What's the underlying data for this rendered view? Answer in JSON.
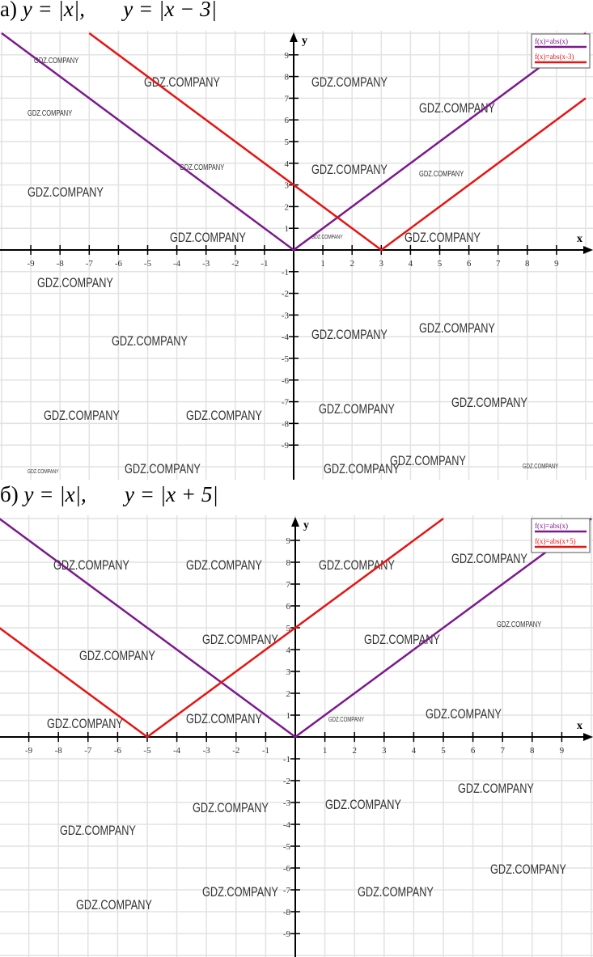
{
  "charts_titles": [
    {
      "label": "а)",
      "f1": "y = |x|,",
      "f2": "y = |x − 3|"
    },
    {
      "label": "б)",
      "f1": "y = |x|,",
      "f2": "y = |x + 5|"
    }
  ],
  "watermark": "GDZ.COMPANY",
  "chart_data": [
    {
      "type": "line",
      "xlabel": "x",
      "ylabel": "y",
      "xlim": [
        -10,
        10
      ],
      "ylim": [
        -10,
        10
      ],
      "x_ticks": [
        -9,
        -8,
        -7,
        -6,
        -5,
        -4,
        -3,
        -2,
        -1,
        1,
        2,
        3,
        4,
        5,
        6,
        7,
        8,
        9
      ],
      "y_ticks": [
        -9,
        -8,
        -7,
        -6,
        -5,
        -4,
        -3,
        -2,
        -1,
        1,
        2,
        3,
        4,
        5,
        6,
        7,
        8,
        9
      ],
      "grid": true,
      "legend_position": "top-right",
      "series": [
        {
          "name": "f(x)=abs(x)",
          "shift": 0,
          "color": "#7b1a8c",
          "points": [
            [
              -10,
              10
            ],
            [
              0,
              0
            ],
            [
              10,
              10
            ]
          ]
        },
        {
          "name": "f(x)=abs(x-3)",
          "shift": 3,
          "color": "#e81313",
          "points": [
            [
              -7,
              10
            ],
            [
              3,
              0
            ],
            [
              10,
              7
            ]
          ]
        }
      ]
    },
    {
      "type": "line",
      "xlabel": "x",
      "ylabel": "y",
      "xlim": [
        -10,
        10
      ],
      "ylim": [
        -10,
        10
      ],
      "x_ticks": [
        -9,
        -8,
        -7,
        -6,
        -5,
        -4,
        -3,
        -2,
        -1,
        1,
        2,
        3,
        4,
        5,
        6,
        7,
        8,
        9
      ],
      "y_ticks": [
        -9,
        -8,
        -7,
        -6,
        -5,
        -4,
        -3,
        -2,
        -1,
        1,
        2,
        3,
        4,
        5,
        6,
        7,
        8,
        9
      ],
      "grid": true,
      "legend_position": "top-right",
      "series": [
        {
          "name": "f(x)=abs(x)",
          "shift": 0,
          "color": "#7b1a8c",
          "points": [
            [
              -10,
              10
            ],
            [
              0,
              0
            ],
            [
              10,
              10
            ]
          ]
        },
        {
          "name": "f(x)=abs(x+5)",
          "shift": -5,
          "color": "#e81313",
          "points": [
            [
              -10,
              5
            ],
            [
              -5,
              0
            ],
            [
              5,
              10
            ]
          ]
        }
      ]
    }
  ]
}
